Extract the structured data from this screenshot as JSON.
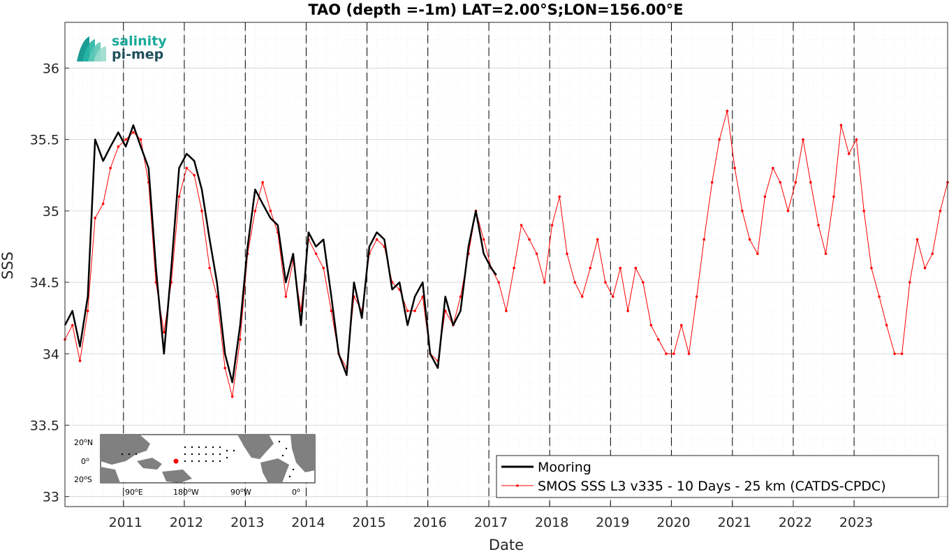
{
  "chart_data": {
    "type": "line",
    "title": "TAO (depth =-1m) LAT=2.00°S;LON=156.00°E",
    "xlabel": "Date",
    "ylabel": "SSS",
    "xlim": [
      "2010-01-15",
      "2024-07-15"
    ],
    "ylim": [
      32.93,
      36.32
    ],
    "y_ticks": [
      33,
      33.5,
      34,
      34.5,
      35,
      35.5,
      36
    ],
    "y_tick_labels": [
      "33",
      "33.5",
      "34",
      "34.5",
      "35",
      "35.5",
      "36"
    ],
    "x_ticks": [
      "2011-01-01",
      "2012-01-01",
      "2013-01-01",
      "2014-01-01",
      "2015-01-01",
      "2016-01-01",
      "2017-01-01",
      "2018-01-01",
      "2019-01-01",
      "2020-01-01",
      "2021-01-01",
      "2022-01-01",
      "2023-01-01"
    ],
    "x_tick_labels": [
      "2011",
      "2012",
      "2013",
      "2014",
      "2015",
      "2016",
      "2017",
      "2018",
      "2019",
      "2020",
      "2021",
      "2022",
      "2023"
    ],
    "year_separators": [
      "2011-01-01",
      "2012-01-01",
      "2013-01-01",
      "2014-01-01",
      "2015-01-01",
      "2016-01-01",
      "2017-01-01",
      "2018-01-01",
      "2019-01-01",
      "2020-01-01",
      "2021-01-01",
      "2022-01-01",
      "2023-01-01"
    ],
    "grid": true,
    "minor_grid": true,
    "legend_position": "bottom-right",
    "series": [
      {
        "name": "Mooring",
        "color": "#000000",
        "marker": "none",
        "x": [
          "2010-01-15",
          "2010-03-01",
          "2010-04-15",
          "2010-06-01",
          "2010-07-15",
          "2010-09-01",
          "2010-10-15",
          "2010-12-01",
          "2011-01-15",
          "2011-03-01",
          "2011-04-15",
          "2011-06-01",
          "2011-07-15",
          "2011-09-01",
          "2011-10-15",
          "2011-12-01",
          "2012-01-15",
          "2012-03-01",
          "2012-04-15",
          "2012-06-01",
          "2012-07-15",
          "2012-09-01",
          "2012-10-15",
          "2012-12-01",
          "2013-01-15",
          "2013-03-01",
          "2013-04-15",
          "2013-06-01",
          "2013-07-15",
          "2013-09-01",
          "2013-10-15",
          "2013-12-01",
          "2014-01-15",
          "2014-03-01",
          "2014-04-15",
          "2014-06-01",
          "2014-07-15",
          "2014-09-01",
          "2014-10-15",
          "2014-12-01",
          "2015-01-15",
          "2015-03-01",
          "2015-04-15",
          "2015-06-01",
          "2015-07-15",
          "2015-09-01",
          "2015-10-15",
          "2015-12-01",
          "2016-01-15",
          "2016-03-01",
          "2016-04-15",
          "2016-06-01",
          "2016-07-15",
          "2016-09-01",
          "2016-10-15",
          "2016-12-01",
          "2017-01-15",
          "2017-02-15"
        ],
        "y": [
          34.2,
          34.3,
          34.05,
          34.4,
          35.5,
          35.35,
          35.45,
          35.55,
          35.45,
          35.6,
          35.45,
          35.3,
          34.6,
          34.0,
          34.6,
          35.3,
          35.4,
          35.35,
          35.15,
          34.8,
          34.5,
          34.0,
          33.8,
          34.2,
          34.75,
          35.15,
          35.05,
          34.95,
          34.9,
          34.5,
          34.7,
          34.2,
          34.85,
          34.75,
          34.8,
          34.4,
          34.0,
          33.85,
          34.5,
          34.25,
          34.75,
          34.85,
          34.8,
          34.45,
          34.5,
          34.2,
          34.4,
          34.5,
          34.0,
          33.9,
          34.4,
          34.2,
          34.3,
          34.75,
          35.0,
          34.7,
          34.6,
          34.55
        ]
      },
      {
        "name": "SMOS SSS L3 v335 - 10 Days - 25 km (CATDS-CPDC)",
        "color": "#ff0000",
        "marker": "dot",
        "x": [
          "2010-01-15",
          "2010-03-01",
          "2010-04-15",
          "2010-06-01",
          "2010-07-15",
          "2010-09-01",
          "2010-10-15",
          "2010-12-01",
          "2011-01-15",
          "2011-03-01",
          "2011-04-15",
          "2011-06-01",
          "2011-07-15",
          "2011-09-01",
          "2011-10-15",
          "2011-12-01",
          "2012-01-15",
          "2012-03-01",
          "2012-04-15",
          "2012-06-01",
          "2012-07-15",
          "2012-09-01",
          "2012-10-15",
          "2012-12-01",
          "2013-01-15",
          "2013-03-01",
          "2013-04-15",
          "2013-06-01",
          "2013-07-15",
          "2013-09-01",
          "2013-10-15",
          "2013-12-01",
          "2014-01-15",
          "2014-03-01",
          "2014-04-15",
          "2014-06-01",
          "2014-07-15",
          "2014-09-01",
          "2014-10-15",
          "2014-12-01",
          "2015-01-15",
          "2015-03-01",
          "2015-04-15",
          "2015-06-01",
          "2015-07-15",
          "2015-09-01",
          "2015-10-15",
          "2015-12-01",
          "2016-01-15",
          "2016-03-01",
          "2016-04-15",
          "2016-06-01",
          "2016-07-15",
          "2016-09-01",
          "2016-10-15",
          "2016-12-01",
          "2017-01-15",
          "2017-03-01",
          "2017-04-15",
          "2017-06-01",
          "2017-07-15",
          "2017-09-01",
          "2017-10-15",
          "2017-12-01",
          "2018-01-15",
          "2018-03-01",
          "2018-04-15",
          "2018-06-01",
          "2018-07-15",
          "2018-09-01",
          "2018-10-15",
          "2018-12-01",
          "2019-01-15",
          "2019-03-01",
          "2019-04-15",
          "2019-06-01",
          "2019-07-15",
          "2019-09-01",
          "2019-10-15",
          "2019-12-01",
          "2020-01-15",
          "2020-03-01",
          "2020-04-15",
          "2020-06-01",
          "2020-07-15",
          "2020-09-01",
          "2020-10-15",
          "2020-12-01",
          "2021-01-15",
          "2021-03-01",
          "2021-04-15",
          "2021-06-01",
          "2021-07-15",
          "2021-09-01",
          "2021-10-15",
          "2021-12-01",
          "2022-01-15",
          "2022-03-01",
          "2022-04-15",
          "2022-06-01",
          "2022-07-15",
          "2022-09-01",
          "2022-10-15",
          "2022-12-01",
          "2023-01-15",
          "2023-03-01",
          "2023-04-15",
          "2023-06-01",
          "2023-07-15",
          "2023-09-01",
          "2023-10-15",
          "2023-12-01",
          "2024-01-15",
          "2024-03-01",
          "2024-04-15",
          "2024-06-01",
          "2024-07-15"
        ],
        "y": [
          34.1,
          34.2,
          33.95,
          34.3,
          34.95,
          35.05,
          35.3,
          35.45,
          35.5,
          35.55,
          35.5,
          35.2,
          34.5,
          34.15,
          34.5,
          35.1,
          35.3,
          35.25,
          35.0,
          34.6,
          34.4,
          33.9,
          33.7,
          34.1,
          34.7,
          35.0,
          35.2,
          35.0,
          34.85,
          34.4,
          34.65,
          34.3,
          34.8,
          34.7,
          34.6,
          34.3,
          34.0,
          33.9,
          34.4,
          34.3,
          34.7,
          34.8,
          34.75,
          34.5,
          34.45,
          34.3,
          34.3,
          34.4,
          34.0,
          33.95,
          34.3,
          34.2,
          34.4,
          34.7,
          35.0,
          34.8,
          34.6,
          34.5,
          34.3,
          34.6,
          34.9,
          34.8,
          34.7,
          34.5,
          34.9,
          35.1,
          34.7,
          34.5,
          34.4,
          34.6,
          34.8,
          34.5,
          34.4,
          34.6,
          34.3,
          34.6,
          34.5,
          34.2,
          34.1,
          34.0,
          34.0,
          34.2,
          34.0,
          34.4,
          34.8,
          35.2,
          35.5,
          35.7,
          35.3,
          35.0,
          34.8,
          34.7,
          35.1,
          35.3,
          35.2,
          35.0,
          35.2,
          35.5,
          35.2,
          34.9,
          34.7,
          35.1,
          35.6,
          35.4,
          35.5,
          35.0,
          34.6,
          34.4,
          34.2,
          34.0,
          34.0,
          34.5,
          34.8,
          34.6,
          34.7,
          35.0,
          35.2
        ]
      }
    ],
    "annotations": [
      "salinity",
      "pi-mep"
    ],
    "inset_map": {
      "lat_labels": [
        "20",
        "0",
        "20"
      ],
      "lat_suffix": [
        "N",
        "",
        "S"
      ],
      "lon_labels": [
        "90",
        "180",
        "90",
        "0"
      ],
      "lon_suffix": [
        "E",
        "W",
        "W",
        ""
      ],
      "degree_symbol": "o",
      "marker_color": "#ff0000",
      "land_color": "#808080",
      "ocean_color": "#ffffff"
    }
  }
}
